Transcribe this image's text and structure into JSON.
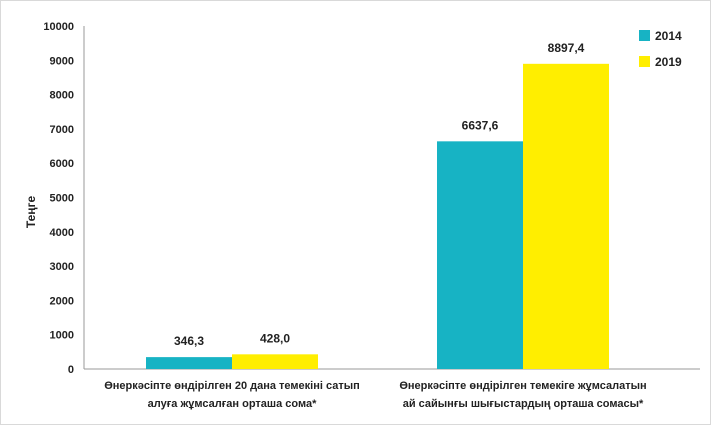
{
  "chart_data": {
    "type": "bar",
    "ylabel": "Теңге",
    "ylim": [
      0,
      10000
    ],
    "yticks": [
      "0",
      "1000",
      "2000",
      "3000",
      "4000",
      "5000",
      "6000",
      "7000",
      "8000",
      "9000",
      "10000"
    ],
    "categories": [
      [
        "Өнеркәсіпте өндірілген 20 дана темекіні сатып",
        "алуға жұмсалған орташа сома*"
      ],
      [
        "Өнеркәсіпте өндірілген темекіге жұмсалатын",
        "ай сайынғы шығыстардың орташа сомасы*"
      ]
    ],
    "series": [
      {
        "name": "2014",
        "color": "#17b3c4",
        "values": [
          346.3,
          6637.6
        ],
        "labels": [
          "346,3",
          "6637,6"
        ]
      },
      {
        "name": "2019",
        "color": "#ffee00",
        "values": [
          428.0,
          8897.4
        ],
        "labels": [
          "428,0",
          "8897,4"
        ]
      }
    ],
    "legend_position": "top-right",
    "grid": false
  }
}
